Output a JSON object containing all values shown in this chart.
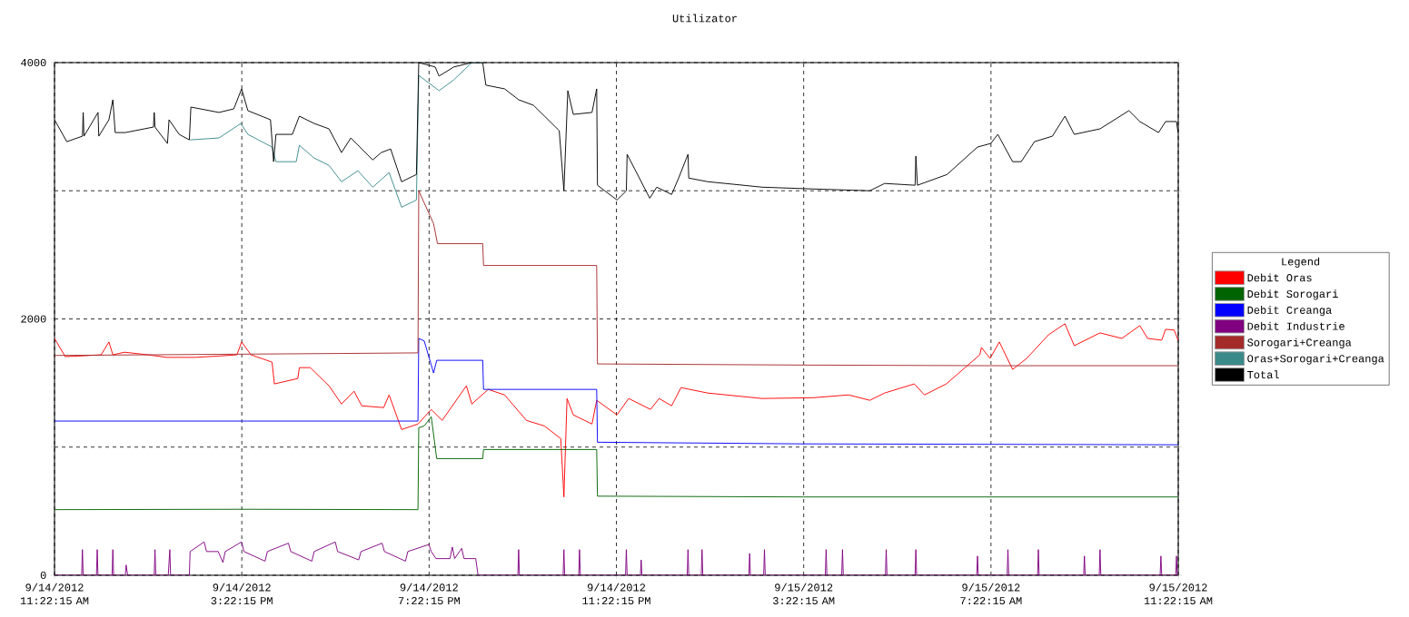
{
  "chart_data": {
    "type": "line",
    "title": "Utilizator",
    "legend_title": "Legend",
    "legend": "right",
    "grid": true,
    "xlim": [
      "2012-09-14T11:22:15",
      "2012-09-15T11:22:15"
    ],
    "ylim": [
      0,
      4000
    ],
    "xticks": [
      {
        "value": "2012-09-14T11:22:15",
        "label": "9/14/2012 11:22:15 AM"
      },
      {
        "value": "2012-09-14T15:22:15",
        "label": "9/14/2012 3:22:15 PM"
      },
      {
        "value": "2012-09-14T19:22:15",
        "label": "9/14/2012 7:22:15 PM"
      },
      {
        "value": "2012-09-14T23:22:15",
        "label": "9/14/2012 11:22:15 PM"
      },
      {
        "value": "2012-09-15T03:22:15",
        "label": "9/15/2012 3:22:15 AM"
      },
      {
        "value": "2012-09-15T07:22:15",
        "label": "9/15/2012 7:22:15 AM"
      },
      {
        "value": "2012-09-15T11:22:15",
        "label": "9/15/2012 11:22:15 AM"
      }
    ],
    "yticks": [
      0,
      {
        "value": 1000,
        "label": null
      },
      2000,
      {
        "value": 3000,
        "label": null
      },
      4000
    ],
    "series": [
      {
        "name": "Debit Oras",
        "color": "#ff0000",
        "x": [
          "2012-09-14T11:22:15",
          "2012-09-14T11:36",
          "2012-09-14T11:52",
          "2012-09-14T12:22",
          "2012-09-14T12:32",
          "2012-09-14T12:37",
          "2012-09-14T12:52",
          "2012-09-14T13:22",
          "2012-09-14T13:46",
          "2012-09-14T14:22",
          "2012-09-14T14:52",
          "2012-09-14T15:16",
          "2012-09-14T15:22",
          "2012-09-14T15:34",
          "2012-09-14T16:01",
          "2012-09-14T16:04",
          "2012-09-14T16:34",
          "2012-09-14T16:36",
          "2012-09-14T16:50",
          "2012-09-14T17:14",
          "2012-09-14T17:30",
          "2012-09-14T17:46",
          "2012-09-14T17:56",
          "2012-09-14T18:24",
          "2012-09-14T18:31",
          "2012-09-14T18:47",
          "2012-09-14T19:08",
          "2012-09-14T19:25",
          "2012-09-14T19:39",
          "2012-09-14T20:10",
          "2012-09-14T20:17",
          "2012-09-14T20:38",
          "2012-09-14T20:59",
          "2012-09-14T21:27",
          "2012-09-14T21:50",
          "2012-09-14T22:11",
          "2012-09-14T22:15",
          "2012-09-14T22:19",
          "2012-09-14T22:27",
          "2012-09-14T22:51",
          "2012-09-14T22:57",
          "2012-09-14T23:23",
          "2012-09-14T23:38",
          "2012-09-15T00:06",
          "2012-09-15T00:17",
          "2012-09-15T00:33",
          "2012-09-15T00:45",
          "2012-09-15T01:19",
          "2012-09-15T02:29",
          "2012-09-15T03:34",
          "2012-09-15T04:20",
          "2012-09-15T04:47",
          "2012-09-15T05:06",
          "2012-09-15T05:44",
          "2012-09-15T05:57",
          "2012-09-15T06:25",
          "2012-09-15T07:08",
          "2012-09-15T07:10",
          "2012-09-15T07:21",
          "2012-09-15T07:33",
          "2012-09-15T07:50",
          "2012-09-15T08:08",
          "2012-09-15T08:36",
          "2012-09-15T08:57",
          "2012-09-15T09:09",
          "2012-09-15T09:42",
          "2012-09-15T10:10",
          "2012-09-15T10:33",
          "2012-09-15T10:43",
          "2012-09-15T11:01",
          "2012-09-15T11:06",
          "2012-09-15T11:17",
          "2012-09-15T11:22"
        ],
        "values": [
          1848,
          1706,
          1710,
          1720,
          1820,
          1720,
          1740,
          1720,
          1700,
          1700,
          1710,
          1720,
          1820,
          1720,
          1663,
          1493,
          1535,
          1620,
          1620,
          1478,
          1336,
          1436,
          1322,
          1308,
          1407,
          1137,
          1180,
          1294,
          1208,
          1478,
          1336,
          1450,
          1407,
          1208,
          1165,
          1066,
          611,
          1379,
          1251,
          1180,
          1365,
          1251,
          1379,
          1294,
          1379,
          1322,
          1464,
          1422,
          1379,
          1385,
          1407,
          1365,
          1422,
          1493,
          1407,
          1493,
          1720,
          1777,
          1692,
          1820,
          1606,
          1692,
          1876,
          1962,
          1791,
          1891,
          1848,
          1948,
          1848,
          1834,
          1919,
          1913,
          1834
        ]
      },
      {
        "name": "Debit Sorogari",
        "color": "#006400",
        "x": [
          "2012-09-14T11:22:15",
          "2012-09-14T15:22",
          "2012-09-14T19:08",
          "2012-09-14T19:09",
          "2012-09-14T19:16",
          "2012-09-14T19:25",
          "2012-09-14T19:32",
          "2012-09-14T20:31",
          "2012-09-14T20:32",
          "2012-09-14T22:57",
          "2012-09-14T22:58",
          "2012-09-15T03:22",
          "2012-09-15T07:22",
          "2012-09-15T11:22"
        ],
        "values": [
          512,
          515,
          512,
          1151,
          1165,
          1237,
          910,
          910,
          981,
          981,
          617,
          611,
          611,
          611
        ]
      },
      {
        "name": "Debit Creanga",
        "color": "#0000ff",
        "x": [
          "2012-09-14T11:22:15",
          "2012-09-14T15:22",
          "2012-09-14T19:08",
          "2012-09-14T19:09",
          "2012-09-14T19:16",
          "2012-09-14T19:28",
          "2012-09-14T19:32",
          "2012-09-14T20:31",
          "2012-09-14T20:32",
          "2012-09-14T22:57",
          "2012-09-14T22:58",
          "2012-09-15T03:22",
          "2012-09-15T11:22"
        ],
        "values": [
          1203,
          1203,
          1203,
          1848,
          1828,
          1578,
          1677,
          1677,
          1450,
          1450,
          1038,
          1025,
          1018
        ]
      },
      {
        "name": "Debit Industrie",
        "color": "#800080",
        "x": [
          "2012-09-14T11:22:15",
          "2012-09-14T11:57",
          "2012-09-14T11:58",
          "2012-09-14T11:59",
          "2012-09-14T12:16",
          "2012-09-14T12:17",
          "2012-09-14T12:18",
          "2012-09-14T12:36",
          "2012-09-14T12:37",
          "2012-09-14T12:38",
          "2012-09-14T12:53",
          "2012-09-14T12:54",
          "2012-09-14T12:56",
          "2012-09-14T13:30",
          "2012-09-14T13:31",
          "2012-09-14T13:32",
          "2012-09-14T13:48",
          "2012-09-14T13:50",
          "2012-09-14T13:51",
          "2012-09-14T14:15",
          "2012-09-14T14:16",
          "2012-09-14T14:34",
          "2012-09-14T14:37",
          "2012-09-14T14:52",
          "2012-09-14T14:58",
          "2012-09-14T15:01",
          "2012-09-14T15:22",
          "2012-09-14T15:25",
          "2012-09-14T15:52",
          "2012-09-14T15:55",
          "2012-09-14T16:22",
          "2012-09-14T16:25",
          "2012-09-14T16:52",
          "2012-09-14T16:55",
          "2012-09-14T17:22",
          "2012-09-14T17:25",
          "2012-09-14T17:52",
          "2012-09-14T17:55",
          "2012-09-14T18:22",
          "2012-09-14T18:25",
          "2012-09-14T18:52",
          "2012-09-14T18:55",
          "2012-09-14T19:22",
          "2012-09-14T19:25",
          "2012-09-14T19:31",
          "2012-09-14T19:49",
          "2012-09-14T19:52",
          "2012-09-14T19:55",
          "2012-09-14T20:04",
          "2012-09-14T20:07",
          "2012-09-14T20:22",
          "2012-09-14T20:25",
          "2012-09-14T21:16",
          "2012-09-14T21:17",
          "2012-09-14T21:18",
          "2012-09-14T22:14",
          "2012-09-14T22:15",
          "2012-09-14T22:16",
          "2012-09-14T22:34",
          "2012-09-14T22:35",
          "2012-09-14T22:36",
          "2012-09-14T23:34",
          "2012-09-14T23:35",
          "2012-09-14T23:36",
          "2012-09-14T23:53",
          "2012-09-14T23:54",
          "2012-09-14T23:55",
          "2012-09-15T00:53",
          "2012-09-15T00:54",
          "2012-09-15T00:55",
          "2012-09-15T01:11",
          "2012-09-15T01:12",
          "2012-09-15T01:13",
          "2012-09-15T02:12",
          "2012-09-15T02:13",
          "2012-09-15T02:14",
          "2012-09-15T02:31",
          "2012-09-15T02:32",
          "2012-09-15T02:33",
          "2012-09-15T03:50",
          "2012-09-15T03:51",
          "2012-09-15T03:52",
          "2012-09-15T04:11",
          "2012-09-15T04:12",
          "2012-09-15T04:13",
          "2012-09-15T05:07",
          "2012-09-15T05:08",
          "2012-09-15T05:09",
          "2012-09-15T05:45",
          "2012-09-15T05:46",
          "2012-09-15T05:47",
          "2012-09-15T07:04",
          "2012-09-15T07:05",
          "2012-09-15T07:06",
          "2012-09-15T07:43",
          "2012-09-15T07:44",
          "2012-09-15T07:45",
          "2012-09-15T08:22",
          "2012-09-15T08:23",
          "2012-09-15T08:24",
          "2012-09-15T09:21",
          "2012-09-15T09:22",
          "2012-09-15T09:23",
          "2012-09-15T09:41",
          "2012-09-15T09:42",
          "2012-09-15T09:43",
          "2012-09-15T10:59",
          "2012-09-15T11:00",
          "2012-09-15T11:01",
          "2012-09-15T11:19",
          "2012-09-15T11:20",
          "2012-09-15T11:21",
          "2012-09-15T11:22"
        ],
        "values": [
          0,
          0,
          200,
          0,
          0,
          200,
          0,
          0,
          200,
          0,
          0,
          80,
          0,
          0,
          200,
          0,
          0,
          200,
          0,
          0,
          185,
          260,
          185,
          185,
          100,
          185,
          260,
          185,
          110,
          185,
          250,
          185,
          110,
          185,
          260,
          185,
          120,
          185,
          250,
          185,
          110,
          185,
          240,
          185,
          130,
          130,
          220,
          130,
          210,
          130,
          130,
          0,
          0,
          200,
          0,
          0,
          200,
          0,
          0,
          200,
          0,
          0,
          200,
          0,
          0,
          120,
          0,
          0,
          200,
          0,
          0,
          200,
          0,
          0,
          170,
          0,
          0,
          200,
          0,
          0,
          200,
          0,
          0,
          200,
          0,
          0,
          200,
          0,
          0,
          200,
          0,
          0,
          150,
          0,
          0,
          200,
          0,
          0,
          200,
          0,
          0,
          150,
          0,
          0,
          200,
          0,
          0,
          150,
          0,
          0,
          150,
          0,
          0
        ]
      },
      {
        "name": "Sorogari+Creanga",
        "color": "#a52a2a",
        "x": [
          "2012-09-14T11:22:15",
          "2012-09-14T13:22",
          "2012-09-14T15:22",
          "2012-09-14T17:22",
          "2012-09-14T19:08",
          "2012-09-14T19:09",
          "2012-09-14T19:28",
          "2012-09-14T19:33",
          "2012-09-14T20:31",
          "2012-09-14T20:32",
          "2012-09-14T22:57",
          "2012-09-14T22:58",
          "2012-09-15T03:22",
          "2012-09-15T07:22",
          "2012-09-15T11:22"
        ],
        "values": [
          1715,
          1720,
          1725,
          1730,
          1735,
          3000,
          2743,
          2587,
          2587,
          2417,
          2417,
          1649,
          1640,
          1635,
          1635
        ]
      },
      {
        "name": "Oras+Sorogari+Creanga",
        "color": "#3a8a8a",
        "x": [
          "2012-09-14T14:16",
          "2012-09-14T14:53",
          "2012-09-14T15:21",
          "2012-09-14T15:30",
          "2012-09-14T16:01",
          "2012-09-14T16:06",
          "2012-09-14T16:32",
          "2012-09-14T16:36",
          "2012-09-14T16:55",
          "2012-09-14T17:14",
          "2012-09-14T17:30",
          "2012-09-14T17:51",
          "2012-09-14T18:10",
          "2012-09-14T18:31",
          "2012-09-14T18:47",
          "2012-09-14T19:06",
          "2012-09-14T19:09",
          "2012-09-14T19:35",
          "2012-09-14T19:54",
          "2012-09-14T20:17",
          "2012-09-14T20:31"
        ],
        "values": [
          3397,
          3412,
          3525,
          3440,
          3341,
          3227,
          3227,
          3355,
          3255,
          3198,
          3070,
          3156,
          3028,
          3142,
          2871,
          2928,
          3900,
          3781,
          3866,
          4000,
          4000
        ]
      },
      {
        "name": "Total",
        "color": "#000000",
        "x": [
          "2012-09-14T11:22:15",
          "2012-09-14T11:38",
          "2012-09-14T11:58",
          "2012-09-14T11:59",
          "2012-09-14T12:00",
          "2012-09-14T12:18",
          "2012-09-14T12:19",
          "2012-09-14T12:32",
          "2012-09-14T12:37",
          "2012-09-14T12:40",
          "2012-09-14T12:53",
          "2012-09-14T13:29",
          "2012-09-14T13:30",
          "2012-09-14T13:31",
          "2012-09-14T13:47",
          "2012-09-14T13:49",
          "2012-09-14T14:02",
          "2012-09-14T14:15",
          "2012-09-14T14:17",
          "2012-09-14T14:53",
          "2012-09-14T15:12",
          "2012-09-14T15:22",
          "2012-09-14T15:30",
          "2012-09-14T15:59",
          "2012-09-14T16:03",
          "2012-09-14T16:06",
          "2012-09-14T16:27",
          "2012-09-14T16:36",
          "2012-09-14T16:55",
          "2012-09-14T17:14",
          "2012-09-14T17:30",
          "2012-09-14T17:42",
          "2012-09-14T18:10",
          "2012-09-14T18:21",
          "2012-09-14T18:33",
          "2012-09-14T18:47",
          "2012-09-14T19:06",
          "2012-09-14T19:09",
          "2012-09-14T19:30",
          "2012-09-14T19:35",
          "2012-09-14T19:54",
          "2012-09-14T20:17",
          "2012-09-14T20:31",
          "2012-09-14T20:35",
          "2012-09-14T20:59",
          "2012-09-14T21:17",
          "2012-09-14T21:36",
          "2012-09-14T22:09",
          "2012-09-14T22:15",
          "2012-09-14T22:20",
          "2012-09-14T22:27",
          "2012-09-14T22:51",
          "2012-09-14T22:57",
          "2012-09-14T22:58",
          "2012-09-14T23:23",
          "2012-09-14T23:35",
          "2012-09-14T23:36",
          "2012-09-15T00:05",
          "2012-09-15T00:14",
          "2012-09-15T00:33",
          "2012-09-15T00:42",
          "2012-09-15T00:54",
          "2012-09-15T00:55",
          "2012-09-15T01:19",
          "2012-09-15T02:29",
          "2012-09-15T03:34",
          "2012-09-15T04:47",
          "2012-09-15T05:06",
          "2012-09-15T05:45",
          "2012-09-15T05:46",
          "2012-09-15T05:48",
          "2012-09-15T06:26",
          "2012-09-15T07:05",
          "2012-09-15T07:22",
          "2012-09-15T07:31",
          "2012-09-15T07:50",
          "2012-09-15T08:01",
          "2012-09-15T08:18",
          "2012-09-15T08:41",
          "2012-09-15T08:57",
          "2012-09-15T09:09",
          "2012-09-15T09:42",
          "2012-09-15T10:19",
          "2012-09-15T10:33",
          "2012-09-15T10:57",
          "2012-09-15T11:06",
          "2012-09-15T11:20",
          "2012-09-15T11:22"
        ],
        "values": [
          3554,
          3383,
          3426,
          3611,
          3426,
          3611,
          3426,
          3554,
          3710,
          3454,
          3454,
          3497,
          3611,
          3497,
          3369,
          3554,
          3440,
          3397,
          3653,
          3611,
          3639,
          3795,
          3625,
          3554,
          3227,
          3440,
          3440,
          3582,
          3525,
          3483,
          3298,
          3412,
          3241,
          3298,
          3326,
          3070,
          3127,
          4000,
          3966,
          3895,
          3966,
          4000,
          4000,
          3824,
          3795,
          3710,
          3667,
          3469,
          3000,
          3781,
          3596,
          3611,
          3795,
          3043,
          2928,
          3000,
          3284,
          2942,
          3028,
          2971,
          3099,
          3284,
          3099,
          3071,
          3028,
          3014,
          3000,
          3057,
          3043,
          3270,
          3043,
          3127,
          3341,
          3369,
          3440,
          3227,
          3227,
          3383,
          3426,
          3582,
          3440,
          3483,
          3625,
          3540,
          3454,
          3540,
          3540,
          3454
        ]
      }
    ]
  }
}
